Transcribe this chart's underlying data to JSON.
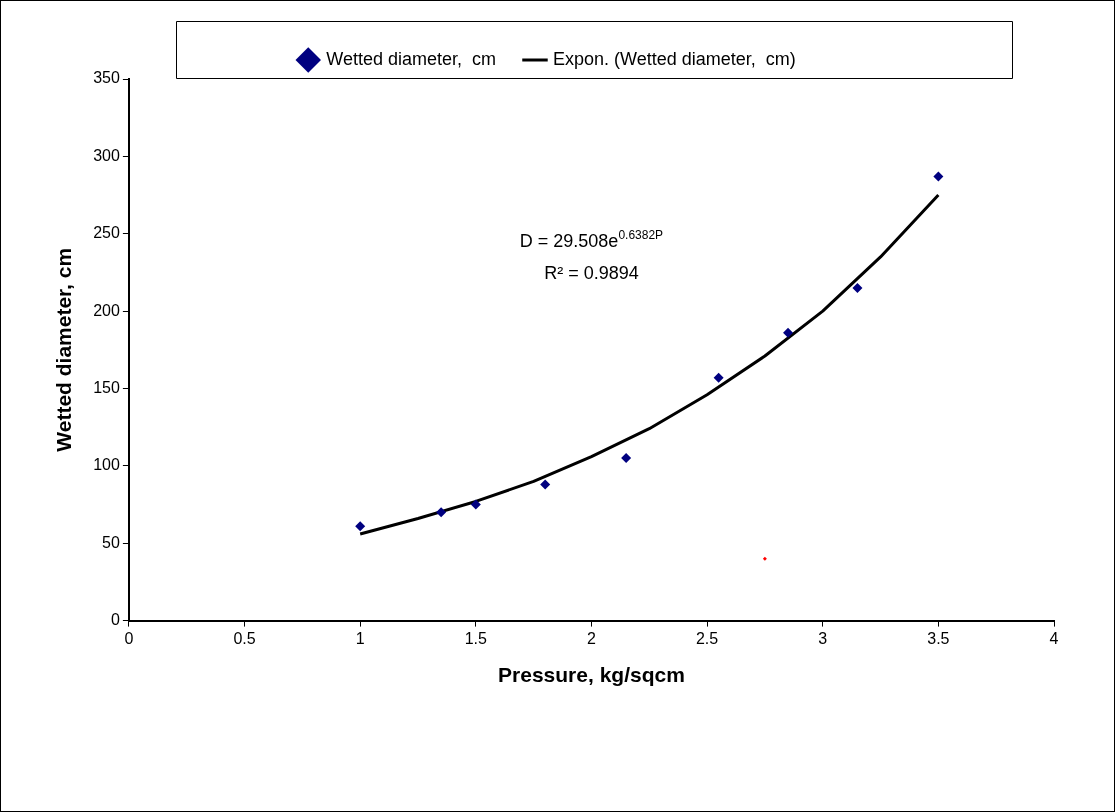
{
  "chart_data": {
    "type": "scatter",
    "xlabel": "Pressure, kg/sqcm",
    "ylabel": "Wetted diameter, cm",
    "xlim": [
      0,
      4
    ],
    "xticks": [
      0,
      0.5,
      1,
      1.5,
      2,
      2.5,
      3,
      3.5,
      4
    ],
    "ylim": [
      0,
      350
    ],
    "yticks": [
      0,
      50,
      100,
      150,
      200,
      250,
      300,
      350
    ],
    "grid": false,
    "legend": "top",
    "marker": "diamond",
    "series": [
      {
        "name": "Wetted diameter,  cm",
        "color": "#000080",
        "x": [
          1,
          1.35,
          1.5,
          1.8,
          2.15,
          2.55,
          2.85,
          3.15,
          3.5
        ],
        "values": [
          61,
          70,
          75,
          88,
          105,
          157,
          186,
          215,
          287
        ]
      },
      {
        "name": "Expon. (Wetted diameter,  cm)",
        "type": "line",
        "color": "#000000",
        "marker": "none",
        "x": [
          1,
          1.25,
          1.5,
          1.75,
          2,
          2.25,
          2.5,
          2.75,
          3,
          3.25,
          3.5
        ],
        "values": [
          56,
          66,
          77,
          90,
          106,
          124,
          146,
          171,
          200,
          235,
          275
        ]
      },
      {
        "color": "#ff0000",
        "x": [
          2.75
        ],
        "values": [
          40
        ]
      }
    ],
    "annotations": [
      "D = 29.508e$^{0.6382P}$",
      "R² = 0.9894"
    ]
  }
}
